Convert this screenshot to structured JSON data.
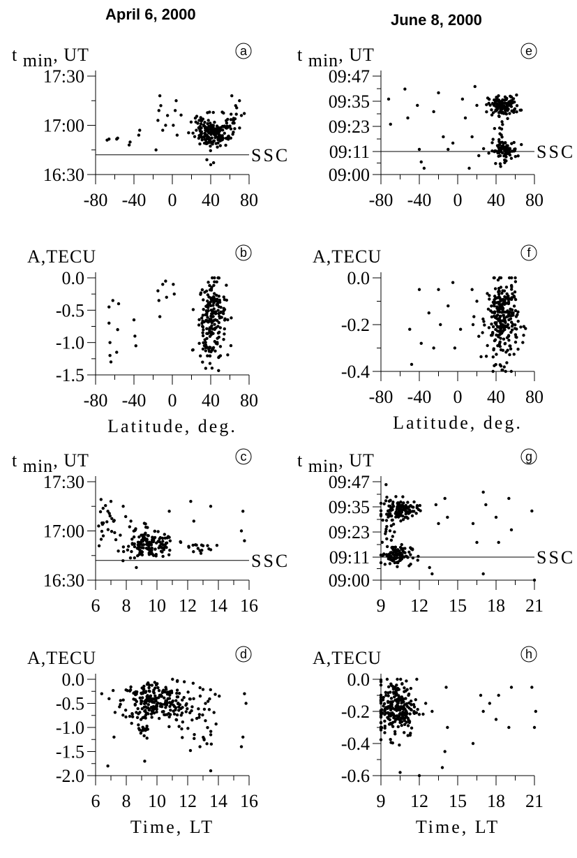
{
  "headers": {
    "left": "April 6, 2000",
    "right": "June 8, 2000"
  },
  "chart_data": [
    {
      "type": "scatter",
      "id": "a",
      "panel_letter": "a",
      "column": "April 6, 2000",
      "ylabel": "t min, UT",
      "xlabel": "",
      "xlim": [
        -80,
        80
      ],
      "ylim": [
        16.5,
        17.5
      ],
      "xticks": [
        "-80",
        "-40",
        "0",
        "40",
        "80"
      ],
      "xtick_values": [
        -80,
        -40,
        0,
        40,
        80
      ],
      "yticks": [
        "16:30",
        "17:00",
        "17:30"
      ],
      "ytick_values": [
        16.5,
        17.0,
        17.5
      ],
      "ssc_label": "SSC",
      "ssc_y": 16.7,
      "clusters": [
        {
          "x": -68,
          "y": 16.85
        },
        {
          "x": -66,
          "y": 16.86
        },
        {
          "x": -58,
          "y": 16.86
        },
        {
          "x": -57,
          "y": 16.87
        },
        {
          "x": -45,
          "y": 16.8
        },
        {
          "x": -44,
          "y": 16.83
        },
        {
          "x": -35,
          "y": 16.9
        },
        {
          "x": -34,
          "y": 16.95
        },
        {
          "x": -15,
          "y": 17.05
        },
        {
          "x": -14,
          "y": 17.15
        },
        {
          "x": -13,
          "y": 17.3
        },
        {
          "x": -12,
          "y": 17.2
        },
        {
          "x": -10,
          "y": 16.95
        },
        {
          "x": -7,
          "y": 17.0
        },
        {
          "x": -5,
          "y": 17.1
        },
        {
          "x": 1,
          "y": 17.0
        },
        {
          "x": 3,
          "y": 17.15
        },
        {
          "x": 4,
          "y": 17.25
        },
        {
          "x": 5,
          "y": 16.9
        },
        {
          "x": -17,
          "y": 16.75
        },
        {
          "x": 28,
          "y": 17.05
        },
        {
          "x": 25,
          "y": 16.95
        },
        {
          "x": 35,
          "y": 16.98
        },
        {
          "x": 62,
          "y": 17.3
        },
        {
          "x": 66,
          "y": 17.2
        },
        {
          "x": 72,
          "y": 17.1
        },
        {
          "x": 70,
          "y": 17.25
        },
        {
          "x": 75,
          "y": 17.12
        },
        {
          "x": 40,
          "y": 16.6
        },
        {
          "x": 43,
          "y": 16.62
        },
        {
          "x": 36,
          "y": 16.65
        }
      ]
    },
    {
      "type": "scatter",
      "id": "b",
      "panel_letter": "b",
      "column": "April 6, 2000",
      "ylabel": "A,TECU",
      "xlabel": "Latitude, deg.",
      "xlim": [
        -80,
        80
      ],
      "ylim": [
        -1.5,
        0.0
      ],
      "xticks": [
        "-80",
        "-40",
        "0",
        "40",
        "80"
      ],
      "xtick_values": [
        -80,
        -40,
        0,
        40,
        80
      ],
      "yticks": [
        "0.0",
        "-0.5",
        "-1.0",
        "-1.5"
      ],
      "ytick_values": [
        0.0,
        -0.5,
        -1.0,
        -1.5
      ],
      "clusters": [
        {
          "x": -66,
          "y": -0.45
        },
        {
          "x": -66,
          "y": -0.7
        },
        {
          "x": -65,
          "y": -1.0
        },
        {
          "x": -65,
          "y": -1.2
        },
        {
          "x": -64,
          "y": -1.3
        },
        {
          "x": -62,
          "y": -0.35
        },
        {
          "x": -58,
          "y": -1.15
        },
        {
          "x": -57,
          "y": -0.8
        },
        {
          "x": -56,
          "y": -0.4
        },
        {
          "x": -40,
          "y": -0.65
        },
        {
          "x": -39,
          "y": -0.9
        },
        {
          "x": -38,
          "y": -1.05
        },
        {
          "x": -15,
          "y": -0.2
        },
        {
          "x": -14,
          "y": -0.35
        },
        {
          "x": -13,
          "y": -0.6
        },
        {
          "x": -10,
          "y": -0.1
        },
        {
          "x": -7,
          "y": -0.05
        },
        {
          "x": -6,
          "y": -0.3
        },
        {
          "x": 1,
          "y": -0.1
        },
        {
          "x": 2,
          "y": -0.25
        }
      ]
    },
    {
      "type": "scatter",
      "id": "c",
      "panel_letter": "c",
      "column": "April 6, 2000",
      "ylabel": "t min, UT",
      "xlabel": "",
      "xlim": [
        6,
        16
      ],
      "ylim": [
        16.5,
        17.5
      ],
      "xticks": [
        "6",
        "8",
        "10",
        "12",
        "14",
        "16"
      ],
      "xtick_values": [
        6,
        8,
        10,
        12,
        14,
        16
      ],
      "yticks": [
        "16:30",
        "17:00",
        "17:30"
      ],
      "ytick_values": [
        16.5,
        17.0,
        17.5
      ],
      "ssc_label": "SSC",
      "ssc_y": 16.7,
      "clusters": [
        {
          "x": 6.2,
          "y": 17.05
        },
        {
          "x": 6.5,
          "y": 16.95
        },
        {
          "x": 6.8,
          "y": 17.2
        },
        {
          "x": 7.0,
          "y": 17.3
        },
        {
          "x": 7.8,
          "y": 17.25
        },
        {
          "x": 8.3,
          "y": 17.1
        },
        {
          "x": 10.8,
          "y": 17.2
        },
        {
          "x": 12.2,
          "y": 17.3
        },
        {
          "x": 12.4,
          "y": 17.1
        },
        {
          "x": 13.5,
          "y": 17.25
        },
        {
          "x": 15.6,
          "y": 17.2
        },
        {
          "x": 15.5,
          "y": 17.0
        },
        {
          "x": 15.7,
          "y": 16.9
        },
        {
          "x": 12.8,
          "y": 16.8
        },
        {
          "x": 13.0,
          "y": 16.85
        }
      ]
    },
    {
      "type": "scatter",
      "id": "d",
      "panel_letter": "d",
      "column": "April 6, 2000",
      "ylabel": "A,TECU",
      "xlabel": "Time, LT",
      "xlim": [
        6,
        16
      ],
      "ylim": [
        -2.0,
        0.0
      ],
      "xticks": [
        "6",
        "8",
        "10",
        "12",
        "14",
        "16"
      ],
      "xtick_values": [
        6,
        8,
        10,
        12,
        14,
        16
      ],
      "yticks": [
        "0.0",
        "-0.5",
        "-1.0",
        "-1.5",
        "-2.0"
      ],
      "ytick_values": [
        0.0,
        -0.5,
        -1.0,
        -1.5,
        -2.0
      ],
      "clusters": [
        {
          "x": 6.8,
          "y": -1.8
        },
        {
          "x": 9.2,
          "y": -1.7
        },
        {
          "x": 13.5,
          "y": -1.9
        },
        {
          "x": 15.5,
          "y": -1.4
        },
        {
          "x": 15.6,
          "y": -1.2
        },
        {
          "x": 15.7,
          "y": -0.3
        },
        {
          "x": 15.8,
          "y": -0.5
        },
        {
          "x": 7.2,
          "y": -1.2
        },
        {
          "x": 6.4,
          "y": -0.3
        },
        {
          "x": 12.8,
          "y": -1.4
        }
      ]
    },
    {
      "type": "scatter",
      "id": "e",
      "panel_letter": "e",
      "column": "June 8, 2000",
      "ylabel": "t min, UT",
      "xlabel": "",
      "xlim": [
        -80,
        80
      ],
      "ylim": [
        9.0,
        9.783
      ],
      "xticks": [
        "-80",
        "-40",
        "0",
        "40",
        "80"
      ],
      "xtick_values": [
        -80,
        -40,
        0,
        40,
        80
      ],
      "yticks": [
        "09:00",
        "09:11",
        "09:23",
        "09:35",
        "09:47"
      ],
      "ytick_values": [
        9.0,
        9.183,
        9.383,
        9.583,
        9.783
      ],
      "ssc_label": "SSC",
      "ssc_y": 9.183,
      "clusters": [
        {
          "x": -72,
          "y": 9.6
        },
        {
          "x": -70,
          "y": 9.4
        },
        {
          "x": -55,
          "y": 9.68
        },
        {
          "x": -52,
          "y": 9.45
        },
        {
          "x": -42,
          "y": 9.55
        },
        {
          "x": -40,
          "y": 9.2
        },
        {
          "x": -38,
          "y": 9.1
        },
        {
          "x": -35,
          "y": 9.05
        },
        {
          "x": -25,
          "y": 9.5
        },
        {
          "x": -20,
          "y": 9.65
        },
        {
          "x": -15,
          "y": 9.3
        },
        {
          "x": -10,
          "y": 9.2
        },
        {
          "x": -5,
          "y": 9.25
        },
        {
          "x": 5,
          "y": 9.6
        },
        {
          "x": 8,
          "y": 9.45
        },
        {
          "x": 15,
          "y": 9.3
        },
        {
          "x": 18,
          "y": 9.7
        },
        {
          "x": 20,
          "y": 9.55
        },
        {
          "x": 22,
          "y": 9.15
        },
        {
          "x": 12,
          "y": 9.05
        }
      ]
    },
    {
      "type": "scatter",
      "id": "f",
      "panel_letter": "f",
      "column": "June 8, 2000",
      "ylabel": "A,TECU",
      "xlabel": "Latitude, deg.",
      "xlim": [
        -80,
        80
      ],
      "ylim": [
        -0.4,
        0.0
      ],
      "xticks": [
        "-80",
        "-40",
        "0",
        "40",
        "80"
      ],
      "xtick_values": [
        -80,
        -40,
        0,
        40,
        80
      ],
      "yticks": [
        "0.0",
        "-0.2",
        "-0.4"
      ],
      "ytick_values": [
        0.0,
        -0.2,
        -0.4
      ],
      "clusters": [
        {
          "x": -50,
          "y": -0.22
        },
        {
          "x": -48,
          "y": -0.37
        },
        {
          "x": -40,
          "y": -0.05
        },
        {
          "x": -38,
          "y": -0.28
        },
        {
          "x": -30,
          "y": -0.15
        },
        {
          "x": -25,
          "y": -0.3
        },
        {
          "x": -20,
          "y": -0.05
        },
        {
          "x": -18,
          "y": -0.2
        },
        {
          "x": -10,
          "y": -0.12
        },
        {
          "x": -5,
          "y": -0.02
        },
        {
          "x": -3,
          "y": -0.3
        },
        {
          "x": 3,
          "y": -0.22
        },
        {
          "x": 15,
          "y": -0.05
        },
        {
          "x": 16,
          "y": -0.2
        },
        {
          "x": 20,
          "y": -0.1
        },
        {
          "x": 22,
          "y": -0.25
        }
      ]
    },
    {
      "type": "scatter",
      "id": "g",
      "panel_letter": "g",
      "column": "June 8, 2000",
      "ylabel": "t min, UT",
      "xlabel": "",
      "xlim": [
        9,
        21
      ],
      "ylim": [
        9.0,
        9.783
      ],
      "xticks": [
        "9",
        "12",
        "15",
        "18",
        "21"
      ],
      "xtick_values": [
        9,
        12,
        15,
        18,
        21
      ],
      "yticks": [
        "09:00",
        "09:11",
        "09:23",
        "09:35",
        "09:47"
      ],
      "ytick_values": [
        9.0,
        9.183,
        9.383,
        9.583,
        9.783
      ],
      "ssc_label": "SSC",
      "ssc_y": 9.183,
      "clusters": [
        {
          "x": 9.4,
          "y": 9.76
        },
        {
          "x": 13.3,
          "y": 9.6
        },
        {
          "x": 13.5,
          "y": 9.45
        },
        {
          "x": 14.0,
          "y": 9.65
        },
        {
          "x": 14.2,
          "y": 9.5
        },
        {
          "x": 16.2,
          "y": 9.45
        },
        {
          "x": 16.5,
          "y": 9.3
        },
        {
          "x": 17.0,
          "y": 9.7
        },
        {
          "x": 17.2,
          "y": 9.6
        },
        {
          "x": 18.0,
          "y": 9.5
        },
        {
          "x": 18.2,
          "y": 9.3
        },
        {
          "x": 19.0,
          "y": 9.65
        },
        {
          "x": 19.2,
          "y": 9.4
        },
        {
          "x": 20.8,
          "y": 9.55
        },
        {
          "x": 21.0,
          "y": 9.0
        },
        {
          "x": 17.0,
          "y": 9.05
        },
        {
          "x": 12.8,
          "y": 9.1
        },
        {
          "x": 13.0,
          "y": 9.05
        }
      ]
    },
    {
      "type": "scatter",
      "id": "h",
      "panel_letter": "h",
      "column": "June 8, 2000",
      "ylabel": "A,TECU",
      "xlabel": "Time, LT",
      "xlim": [
        9,
        21
      ],
      "ylim": [
        -0.6,
        0.0
      ],
      "xticks": [
        "9",
        "12",
        "15",
        "18",
        "21"
      ],
      "xtick_values": [
        9,
        12,
        15,
        18,
        21
      ],
      "yticks": [
        "0.0",
        "-0.2",
        "-0.4",
        "-0.6"
      ],
      "ytick_values": [
        0.0,
        -0.2,
        -0.4,
        -0.6
      ],
      "clusters": [
        {
          "x": 10.5,
          "y": -0.58
        },
        {
          "x": 12.0,
          "y": -0.6
        },
        {
          "x": 13.8,
          "y": -0.55
        },
        {
          "x": 14.0,
          "y": -0.45
        },
        {
          "x": 14.1,
          "y": -0.05
        },
        {
          "x": 14.2,
          "y": -0.3
        },
        {
          "x": 16.2,
          "y": -0.4
        },
        {
          "x": 16.8,
          "y": -0.1
        },
        {
          "x": 17.0,
          "y": -0.2
        },
        {
          "x": 17.5,
          "y": -0.15
        },
        {
          "x": 18.0,
          "y": -0.25
        },
        {
          "x": 18.2,
          "y": -0.1
        },
        {
          "x": 19.0,
          "y": -0.3
        },
        {
          "x": 19.2,
          "y": -0.05
        },
        {
          "x": 20.8,
          "y": -0.05
        },
        {
          "x": 21.0,
          "y": -0.3
        },
        {
          "x": 21.1,
          "y": -0.2
        },
        {
          "x": 12.5,
          "y": -0.15
        },
        {
          "x": 13.0,
          "y": -0.2
        }
      ]
    }
  ]
}
